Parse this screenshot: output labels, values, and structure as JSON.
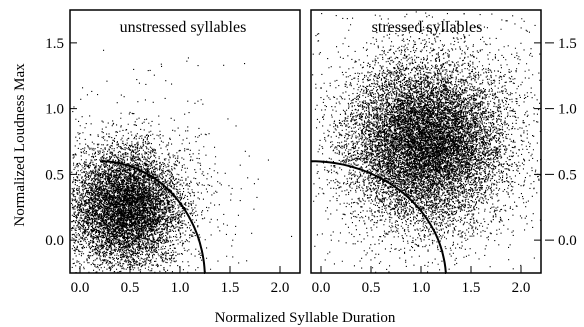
{
  "chart_data": {
    "type": "scatter",
    "xlabel": "Normalized Syllable Duration",
    "ylabel": "Normalized Loudness Max",
    "panels": [
      {
        "title": "unstressed syllables",
        "xlim": [
          -0.1,
          2.2
        ],
        "ylim": [
          -0.25,
          1.75
        ],
        "x_ticks": [
          "0.0",
          "0.5",
          "1.0",
          "1.5",
          "2.0"
        ],
        "y_ticks": [
          "0.0",
          "0.5",
          "1.0",
          "1.5"
        ],
        "y_tick_side": "left",
        "point_cloud": {
          "center_x": 0.45,
          "center_y": 0.25,
          "spread_x": 0.28,
          "spread_y": 0.22,
          "count": 9000
        },
        "boundary_curve": {
          "shape": "quarter-ellipse",
          "center": [
            0.2,
            -0.3
          ],
          "radius_x": 1.05,
          "radius_y": 0.9
        }
      },
      {
        "title": "stressed syllables",
        "xlim": [
          -0.1,
          2.2
        ],
        "ylim": [
          -0.25,
          1.75
        ],
        "x_ticks": [
          "0.0",
          "0.5",
          "1.0",
          "1.5",
          "2.0"
        ],
        "y_ticks": [
          "0.0",
          "0.5",
          "1.0",
          "1.5"
        ],
        "y_tick_side": "right",
        "point_cloud": {
          "center_x": 1.05,
          "center_y": 0.75,
          "spread_x": 0.38,
          "spread_y": 0.3,
          "count": 14000
        },
        "boundary_curve": {
          "shape": "quarter-ellipse",
          "center": [
            -0.1,
            -0.3
          ],
          "radius_x": 1.35,
          "radius_y": 0.9
        }
      }
    ]
  }
}
